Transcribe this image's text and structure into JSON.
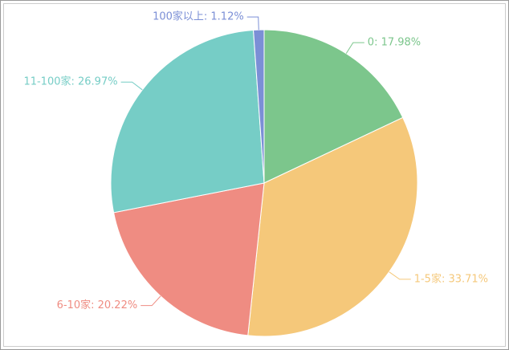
{
  "chart_data": {
    "type": "pie",
    "values": [
      17.98,
      33.71,
      20.22,
      26.97,
      1.12
    ],
    "value_labels": [
      "0: 17.98%",
      "1-5家: 33.71%",
      "6-10家: 20.22%",
      "11-100家: 26.97%",
      "100家以上: 1.12%"
    ],
    "colors": [
      "#7cc68c",
      "#f5c87a",
      "#ef8c82",
      "#76cdc6",
      "#7b8fd6"
    ]
  }
}
